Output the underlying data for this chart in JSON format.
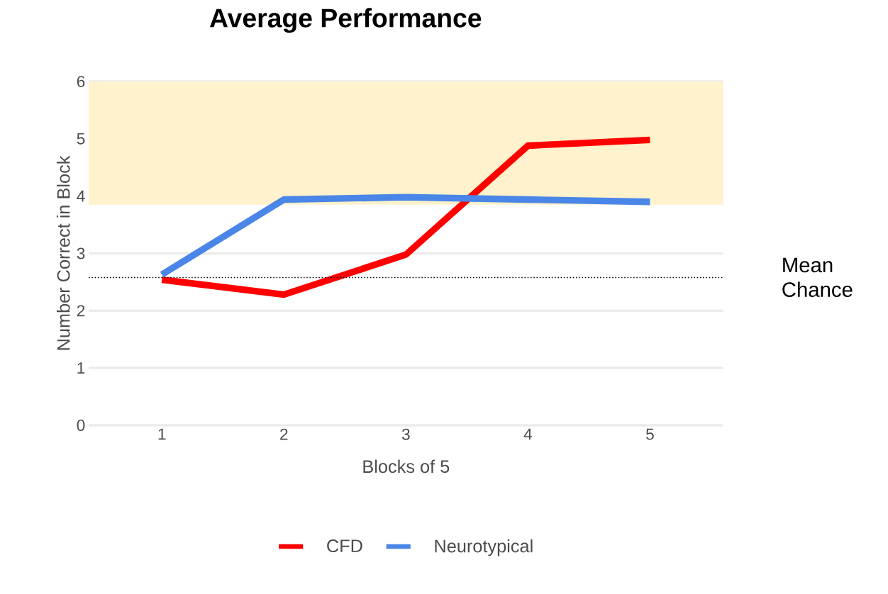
{
  "chart_data": {
    "type": "line",
    "title": "Average Performance",
    "xlabel": "Blocks of 5",
    "ylabel": "Number Correct in Block",
    "categories": [
      "1",
      "2",
      "3",
      "4",
      "5"
    ],
    "series": [
      {
        "name": "CFD",
        "color": "#ff0000",
        "values": [
          2.54,
          2.28,
          2.98,
          4.88,
          4.98
        ]
      },
      {
        "name": "Neurotypical",
        "color": "#4a86e8",
        "values": [
          2.63,
          3.94,
          3.98,
          3.94,
          3.9
        ]
      }
    ],
    "ylim": [
      0,
      6
    ],
    "yticks": [
      0,
      1,
      2,
      3,
      4,
      5,
      6
    ],
    "grid": "y",
    "legend": "bottom",
    "marker": "none",
    "line_style": "solid",
    "ref_lines": [
      {
        "axis": "y",
        "value": 2.58,
        "label": "Mean Chance",
        "color": "#000000",
        "line_style": "dotted"
      }
    ],
    "bands": [
      {
        "axis": "y",
        "from": 3.85,
        "to": 6,
        "color": "#fff2cc"
      }
    ]
  }
}
